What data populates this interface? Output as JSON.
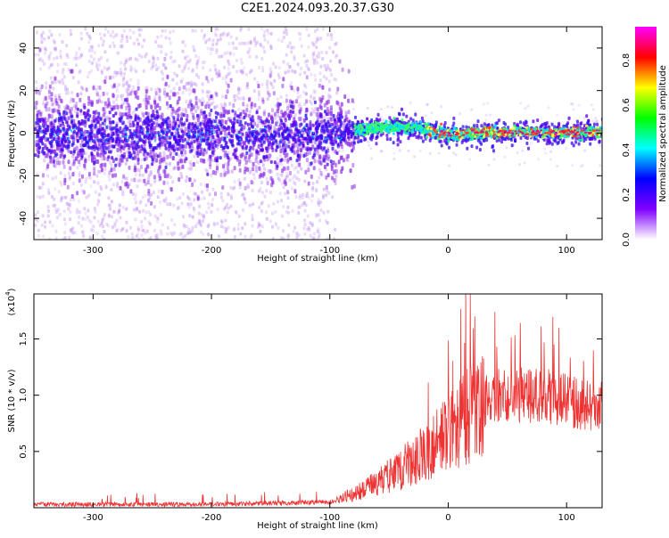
{
  "page": {
    "title": "C2E1.2024.093.20.37.G30"
  },
  "colorbar": {
    "label": "Normalized spectral amplitude",
    "range": [
      0.0,
      0.95
    ],
    "ticks": [
      "0.0",
      "0.2",
      "0.4",
      "0.6",
      "0.8"
    ],
    "tick_values": [
      0.0,
      0.2,
      0.4,
      0.6,
      0.8
    ],
    "colormap": [
      "#ff00ff",
      "#ff0000",
      "#ffff00",
      "#00ff00",
      "#00ffff",
      "#0000ff",
      "#8000ff",
      "#ffffff"
    ]
  },
  "chart_data": [
    {
      "type": "heatmap",
      "title": "",
      "xlabel": "Height of straight line (km)",
      "ylabel": "Frequency (Hz)",
      "xlim": [
        -350,
        130
      ],
      "ylim": [
        -50,
        50
      ],
      "x_ticks": [
        "-300",
        "-200",
        "-100",
        "0",
        "100"
      ],
      "x_tick_values": [
        -300,
        -200,
        -100,
        0,
        100
      ],
      "y_ticks": [
        "-40",
        "-20",
        "0",
        "20",
        "40"
      ],
      "y_tick_values": [
        -40,
        -20,
        0,
        20,
        40
      ],
      "trace_center_hz": {
        "x": [
          -350,
          -100,
          -80,
          -60,
          -40,
          -20,
          0,
          40,
          80,
          130
        ],
        "y": [
          0,
          0,
          2,
          3,
          4,
          2,
          0,
          1,
          1,
          1
        ]
      }
    },
    {
      "type": "line",
      "title": "",
      "xlabel": "Height of straight line (km)",
      "ylabel": "SNR (10 * v/v)",
      "y_multiplier": "(x10",
      "y_multiplier_exp": "4",
      "y_multiplier_close": ")",
      "xlim": [
        -350,
        130
      ],
      "ylim": [
        0,
        1.9
      ],
      "x_ticks": [
        "-300",
        "-200",
        "-100",
        "0",
        "100"
      ],
      "x_tick_values": [
        -300,
        -200,
        -100,
        0,
        100
      ],
      "y_ticks": [
        "0.5",
        "1.0",
        "1.5"
      ],
      "y_tick_values": [
        0.5,
        1.0,
        1.5
      ],
      "color": "#ee3333",
      "envelope": {
        "x": [
          -350,
          -200,
          -100,
          -80,
          -60,
          -40,
          -20,
          0,
          20,
          40,
          60,
          80,
          100,
          120,
          130
        ],
        "y": [
          0.03,
          0.03,
          0.05,
          0.12,
          0.22,
          0.35,
          0.5,
          0.65,
          0.85,
          1.0,
          1.0,
          1.0,
          0.95,
          0.9,
          0.95
        ]
      }
    }
  ]
}
